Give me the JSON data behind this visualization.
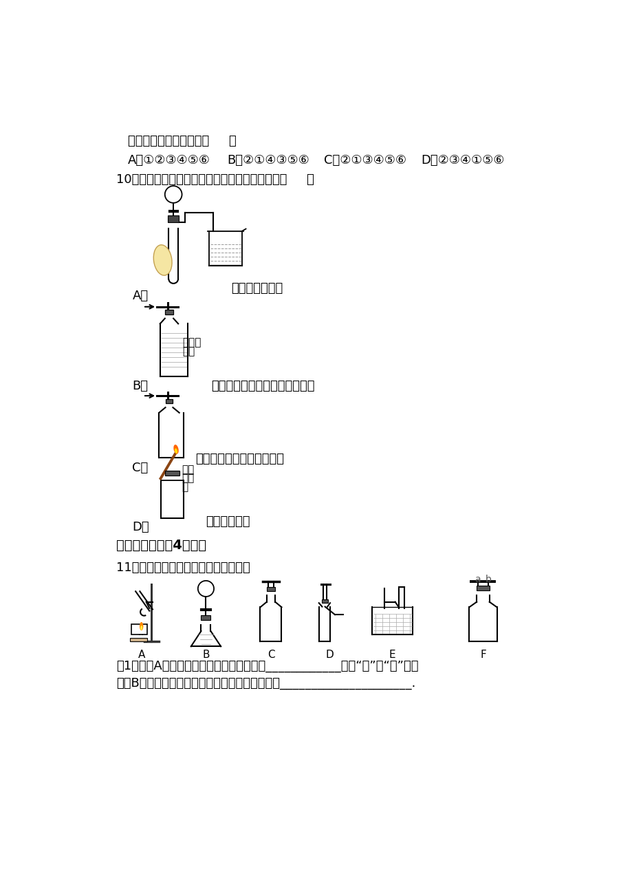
{
  "bg_color": "#ffffff",
  "text_color": "#000000",
  "line1": "其中排列顺序正确的是（     ）",
  "line2_A": "A．①②③④⑤⑥",
  "line2_B": "B．②①④③⑤⑥",
  "line2_C": "C．②①③④⑤⑥",
  "line2_D": "D．②③④①⑤⑥",
  "line3": "10．有关二氧化硨的实验中，能达到实验目的是（     ）",
  "label_A": "A．",
  "desc_A": "检查装置气密性",
  "label_B": "B．",
  "desc_B_label1": "础酸銀",
  "desc_B_label2": "溦液",
  "desc_B": "检验二氧化硨中是否混有氯化氢",
  "label_C": "C．",
  "desc_C": "向上排空气法收集二氧化硨",
  "label_D": "D．",
  "desc_D": "检验二氧化硨",
  "desc_D_label1": "燃着",
  "desc_D_label2": "的木",
  "desc_D_label3": "条",
  "section2": "二、解答题（关4小题）",
  "q11": "11．根据下列装置图，回答有关问题：",
  "q11_sub1_prefix": "（1）组装A装置时，酒精灯应在固定试管之",
  "q11_sub1_blank": "____________",
  "q11_sub1_suffix": "（填“前”或“后”）放",
  "q11_sub2": "置，B装置中长颈漏斗必须伸入液面以下的原因是",
  "q11_sub2_blank": "_____________________",
  "q11_sub2_end": "."
}
